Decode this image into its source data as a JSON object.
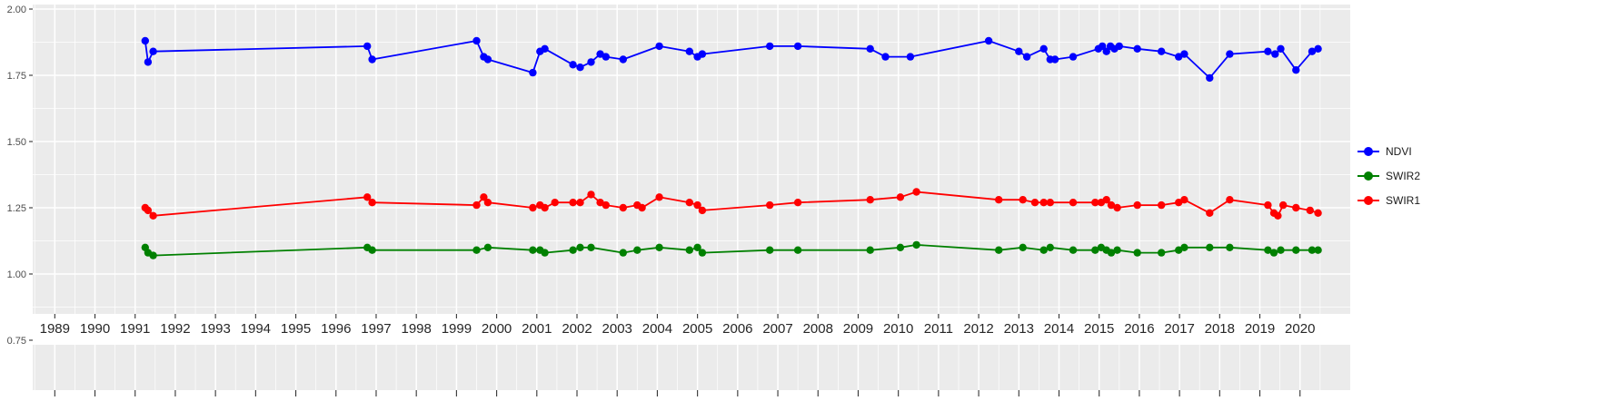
{
  "figure": {
    "background": "#FFFFFF",
    "panel_background": "#EBEBEB",
    "gridline_color": "#FFFFFF",
    "tick_color": "#333333",
    "y_axis_text_color": "#4D4D4D",
    "x_axis_text_color": "#262626"
  },
  "chart_data": {
    "type": "line",
    "title": "",
    "xlabel": "",
    "ylabel": "",
    "grid": true,
    "legend_position": "right",
    "xlim": [
      1988.45,
      2021.25
    ],
    "ylim": [
      0.75,
      2.0
    ],
    "x_ticks": [
      1989,
      1990,
      1991,
      1992,
      1993,
      1994,
      1995,
      1996,
      1997,
      1998,
      1999,
      2000,
      2001,
      2002,
      2003,
      2004,
      2005,
      2006,
      2007,
      2008,
      2009,
      2010,
      2011,
      2012,
      2013,
      2014,
      2015,
      2016,
      2017,
      2018,
      2019,
      2020
    ],
    "y_ticks": [
      2.0,
      1.75,
      1.5,
      1.25,
      1.0,
      0.75
    ],
    "y_tick_labels": [
      "2.00",
      "1.75",
      "1.50",
      "1.25",
      "1.00",
      "0.75"
    ],
    "legend": {
      "position": "right",
      "items": [
        "NDVI",
        "SWIR2",
        "SWIR1"
      ]
    },
    "series": [
      {
        "name": "NDVI",
        "color": "#0000FF",
        "points": [
          [
            1991.25,
            1.88
          ],
          [
            1991.32,
            1.8
          ],
          [
            1991.45,
            1.84
          ],
          [
            1996.78,
            1.86
          ],
          [
            1996.9,
            1.81
          ],
          [
            1999.5,
            1.88
          ],
          [
            1999.68,
            1.82
          ],
          [
            1999.78,
            1.81
          ],
          [
            2000.9,
            1.76
          ],
          [
            2001.08,
            1.84
          ],
          [
            2001.2,
            1.85
          ],
          [
            2001.9,
            1.79
          ],
          [
            2002.08,
            1.78
          ],
          [
            2002.35,
            1.8
          ],
          [
            2002.58,
            1.83
          ],
          [
            2002.72,
            1.82
          ],
          [
            2003.15,
            1.81
          ],
          [
            2004.05,
            1.86
          ],
          [
            2004.8,
            1.84
          ],
          [
            2005.0,
            1.82
          ],
          [
            2005.12,
            1.83
          ],
          [
            2006.8,
            1.86
          ],
          [
            2007.5,
            1.86
          ],
          [
            2009.3,
            1.85
          ],
          [
            2009.68,
            1.82
          ],
          [
            2010.3,
            1.82
          ],
          [
            2012.25,
            1.88
          ],
          [
            2013.0,
            1.84
          ],
          [
            2013.2,
            1.82
          ],
          [
            2013.62,
            1.85
          ],
          [
            2013.78,
            1.81
          ],
          [
            2013.9,
            1.81
          ],
          [
            2014.35,
            1.82
          ],
          [
            2014.98,
            1.85
          ],
          [
            2015.08,
            1.86
          ],
          [
            2015.18,
            1.84
          ],
          [
            2015.28,
            1.86
          ],
          [
            2015.38,
            1.85
          ],
          [
            2015.5,
            1.86
          ],
          [
            2015.95,
            1.85
          ],
          [
            2016.55,
            1.84
          ],
          [
            2016.98,
            1.82
          ],
          [
            2017.12,
            1.83
          ],
          [
            2017.75,
            1.74
          ],
          [
            2018.25,
            1.83
          ],
          [
            2019.2,
            1.84
          ],
          [
            2019.38,
            1.83
          ],
          [
            2019.52,
            1.85
          ],
          [
            2019.9,
            1.77
          ],
          [
            2020.3,
            1.84
          ],
          [
            2020.45,
            1.85
          ]
        ]
      },
      {
        "name": "SWIR2",
        "color": "#008000",
        "points": [
          [
            1991.25,
            1.1
          ],
          [
            1991.32,
            1.08
          ],
          [
            1991.45,
            1.07
          ],
          [
            1996.78,
            1.1
          ],
          [
            1996.9,
            1.09
          ],
          [
            1999.5,
            1.09
          ],
          [
            1999.78,
            1.1
          ],
          [
            2000.9,
            1.09
          ],
          [
            2001.08,
            1.09
          ],
          [
            2001.2,
            1.08
          ],
          [
            2001.9,
            1.09
          ],
          [
            2002.08,
            1.1
          ],
          [
            2002.35,
            1.1
          ],
          [
            2003.15,
            1.08
          ],
          [
            2003.5,
            1.09
          ],
          [
            2004.05,
            1.1
          ],
          [
            2004.8,
            1.09
          ],
          [
            2005.0,
            1.1
          ],
          [
            2005.12,
            1.08
          ],
          [
            2006.8,
            1.09
          ],
          [
            2007.5,
            1.09
          ],
          [
            2009.3,
            1.09
          ],
          [
            2010.05,
            1.1
          ],
          [
            2010.45,
            1.11
          ],
          [
            2012.5,
            1.09
          ],
          [
            2013.1,
            1.1
          ],
          [
            2013.62,
            1.09
          ],
          [
            2013.78,
            1.1
          ],
          [
            2014.35,
            1.09
          ],
          [
            2014.9,
            1.09
          ],
          [
            2015.05,
            1.1
          ],
          [
            2015.18,
            1.09
          ],
          [
            2015.3,
            1.08
          ],
          [
            2015.45,
            1.09
          ],
          [
            2015.95,
            1.08
          ],
          [
            2016.55,
            1.08
          ],
          [
            2016.98,
            1.09
          ],
          [
            2017.12,
            1.1
          ],
          [
            2017.75,
            1.1
          ],
          [
            2018.25,
            1.1
          ],
          [
            2019.2,
            1.09
          ],
          [
            2019.35,
            1.08
          ],
          [
            2019.52,
            1.09
          ],
          [
            2019.9,
            1.09
          ],
          [
            2020.3,
            1.09
          ],
          [
            2020.45,
            1.09
          ]
        ]
      },
      {
        "name": "SWIR1",
        "color": "#FF0000",
        "points": [
          [
            1991.25,
            1.25
          ],
          [
            1991.32,
            1.24
          ],
          [
            1991.45,
            1.22
          ],
          [
            1996.78,
            1.29
          ],
          [
            1996.9,
            1.27
          ],
          [
            1999.5,
            1.26
          ],
          [
            1999.68,
            1.29
          ],
          [
            1999.78,
            1.27
          ],
          [
            2000.9,
            1.25
          ],
          [
            2001.08,
            1.26
          ],
          [
            2001.2,
            1.25
          ],
          [
            2001.45,
            1.27
          ],
          [
            2001.9,
            1.27
          ],
          [
            2002.08,
            1.27
          ],
          [
            2002.35,
            1.3
          ],
          [
            2002.58,
            1.27
          ],
          [
            2002.72,
            1.26
          ],
          [
            2003.15,
            1.25
          ],
          [
            2003.5,
            1.26
          ],
          [
            2003.62,
            1.25
          ],
          [
            2004.05,
            1.29
          ],
          [
            2004.8,
            1.27
          ],
          [
            2005.0,
            1.26
          ],
          [
            2005.12,
            1.24
          ],
          [
            2006.8,
            1.26
          ],
          [
            2007.5,
            1.27
          ],
          [
            2009.3,
            1.28
          ],
          [
            2010.05,
            1.29
          ],
          [
            2010.45,
            1.31
          ],
          [
            2012.5,
            1.28
          ],
          [
            2013.1,
            1.28
          ],
          [
            2013.4,
            1.27
          ],
          [
            2013.62,
            1.27
          ],
          [
            2013.78,
            1.27
          ],
          [
            2014.35,
            1.27
          ],
          [
            2014.9,
            1.27
          ],
          [
            2015.05,
            1.27
          ],
          [
            2015.18,
            1.28
          ],
          [
            2015.3,
            1.26
          ],
          [
            2015.45,
            1.25
          ],
          [
            2015.95,
            1.26
          ],
          [
            2016.55,
            1.26
          ],
          [
            2016.98,
            1.27
          ],
          [
            2017.12,
            1.28
          ],
          [
            2017.75,
            1.23
          ],
          [
            2018.25,
            1.28
          ],
          [
            2019.2,
            1.26
          ],
          [
            2019.35,
            1.23
          ],
          [
            2019.45,
            1.22
          ],
          [
            2019.58,
            1.26
          ],
          [
            2019.9,
            1.25
          ],
          [
            2020.25,
            1.24
          ],
          [
            2020.45,
            1.23
          ]
        ]
      }
    ]
  }
}
